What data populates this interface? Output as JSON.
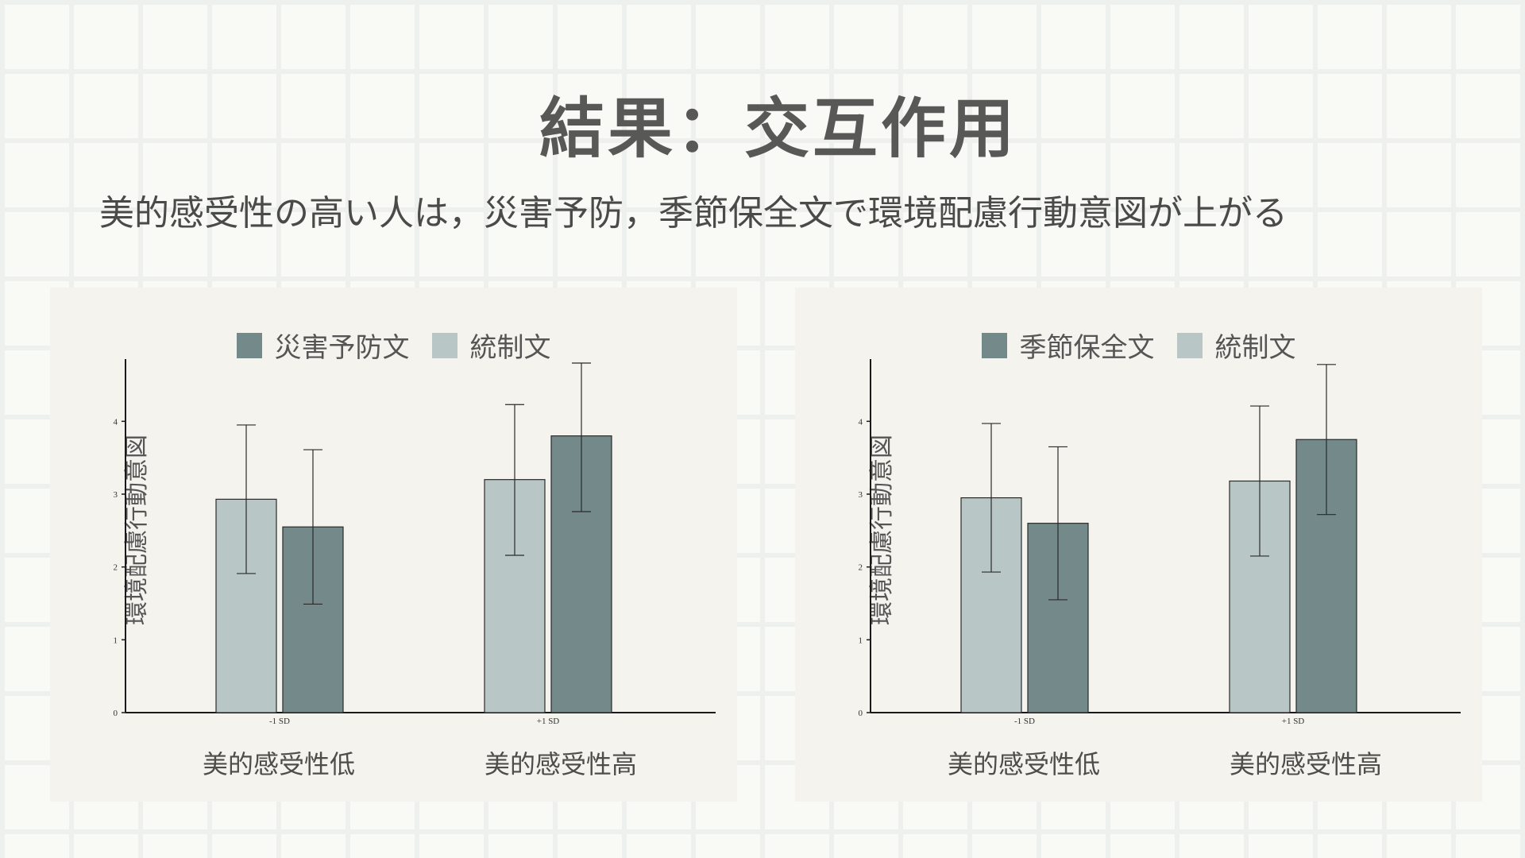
{
  "header": {
    "title": "結果：交互作用",
    "subtitle": "美的感受性の高い人は，災害予防，季節保全文で環境配慮行動意図が上がる"
  },
  "colors": {
    "dark": "#74898a",
    "light": "#b9c6c6",
    "axis": "#1a1a1a"
  },
  "chart_data": [
    {
      "type": "bar",
      "legend": [
        {
          "name": "災害予防文",
          "color": "#74898a"
        },
        {
          "name": "統制文",
          "color": "#b9c6c6"
        }
      ],
      "ylabel": "環境配慮行動意図",
      "categories": [
        "-1 SD",
        "+1 SD"
      ],
      "category_labels": [
        "美的感受性低",
        "美的感受性高"
      ],
      "yticks": [
        "0",
        "1",
        "2",
        "3",
        "4"
      ],
      "ylim": [
        0,
        4.8
      ],
      "series": [
        {
          "color": "#b9c6c6",
          "values": [
            2.93,
            3.2
          ],
          "err_low": [
            1.91,
            2.16
          ],
          "err_high": [
            3.95,
            4.23
          ]
        },
        {
          "color": "#74898a",
          "values": [
            2.55,
            3.8
          ],
          "err_low": [
            1.49,
            2.76
          ],
          "err_high": [
            3.61,
            4.8
          ]
        }
      ]
    },
    {
      "type": "bar",
      "legend": [
        {
          "name": "季節保全文",
          "color": "#74898a"
        },
        {
          "name": "統制文",
          "color": "#b9c6c6"
        }
      ],
      "ylabel": "環境配慮行動意図",
      "categories": [
        "-1 SD",
        "+1 SD"
      ],
      "category_labels": [
        "美的感受性低",
        "美的感受性高"
      ],
      "yticks": [
        "0",
        "1",
        "2",
        "3",
        "4"
      ],
      "ylim": [
        0,
        4.8
      ],
      "series": [
        {
          "color": "#b9c6c6",
          "values": [
            2.95,
            3.18
          ],
          "err_low": [
            1.93,
            2.15
          ],
          "err_high": [
            3.97,
            4.21
          ]
        },
        {
          "color": "#74898a",
          "values": [
            2.6,
            3.75
          ],
          "err_low": [
            1.55,
            2.72
          ],
          "err_high": [
            3.65,
            4.78
          ]
        }
      ]
    }
  ]
}
